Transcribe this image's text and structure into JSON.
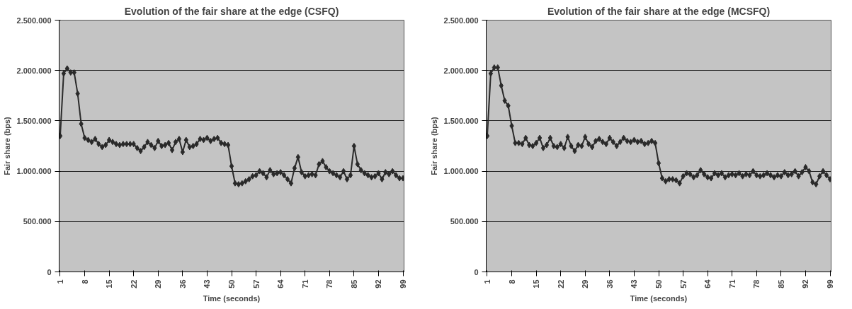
{
  "chart_data": [
    {
      "type": "line",
      "title": "Evolution of the fair share at the edge (CSFQ)",
      "xlabel": "Time (seconds)",
      "ylabel": "Fair share (bps)",
      "categories": [
        "1",
        null,
        null,
        null,
        null,
        null,
        null,
        "8",
        null,
        null,
        null,
        null,
        null,
        null,
        "15",
        null,
        null,
        null,
        null,
        null,
        null,
        "22",
        null,
        null,
        null,
        null,
        null,
        null,
        "29",
        null,
        null,
        null,
        null,
        null,
        null,
        "36",
        null,
        null,
        null,
        null,
        null,
        null,
        "43",
        null,
        null,
        null,
        null,
        null,
        null,
        "50",
        null,
        null,
        null,
        null,
        null,
        null,
        "57",
        null,
        null,
        null,
        null,
        null,
        null,
        "64",
        null,
        null,
        null,
        null,
        null,
        null,
        "71",
        null,
        null,
        null,
        null,
        null,
        null,
        "78",
        null,
        null,
        null,
        null,
        null,
        null,
        "85",
        null,
        null,
        null,
        null,
        null,
        null,
        "92",
        null,
        null,
        null,
        null,
        null,
        null,
        "99"
      ],
      "series": [
        {
          "color": "#2a2a2a",
          "values": [
            1350000,
            1970000,
            2020000,
            1980000,
            1980000,
            1770000,
            1470000,
            1330000,
            1310000,
            1290000,
            1320000,
            1270000,
            1240000,
            1260000,
            1310000,
            1290000,
            1270000,
            1260000,
            1270000,
            1270000,
            1270000,
            1270000,
            1230000,
            1200000,
            1240000,
            1290000,
            1260000,
            1230000,
            1300000,
            1250000,
            1260000,
            1280000,
            1210000,
            1290000,
            1320000,
            1190000,
            1310000,
            1240000,
            1250000,
            1270000,
            1320000,
            1310000,
            1330000,
            1300000,
            1320000,
            1330000,
            1280000,
            1270000,
            1260000,
            1050000,
            880000,
            870000,
            880000,
            900000,
            920000,
            950000,
            960000,
            1000000,
            980000,
            940000,
            1010000,
            970000,
            980000,
            990000,
            960000,
            920000,
            880000,
            1030000,
            1140000,
            990000,
            950000,
            960000,
            970000,
            960000,
            1070000,
            1100000,
            1040000,
            1000000,
            980000,
            960000,
            940000,
            1000000,
            920000,
            960000,
            1250000,
            1070000,
            1010000,
            980000,
            960000,
            940000,
            950000,
            980000,
            920000,
            990000,
            970000,
            1000000,
            960000,
            930000,
            930000
          ]
        }
      ],
      "ylim": [
        0,
        2500000
      ],
      "yticks": [
        0,
        {
          "value": 500000,
          "label": "500.000"
        },
        {
          "value": 1000000,
          "label": "1.000.000"
        },
        {
          "value": 1500000,
          "label": "1.500.000"
        },
        {
          "value": 2000000,
          "label": "2.000.000"
        },
        {
          "value": 2500000,
          "label": "2.500.000"
        }
      ],
      "grid": "y",
      "marker": "diamond",
      "line_style": "solid"
    },
    {
      "type": "line",
      "title": "Evolution of the fair share at the edge (MCSFQ)",
      "xlabel": "Time (seconds)",
      "ylabel": "Fair share (bps)",
      "categories": [
        "1",
        null,
        null,
        null,
        null,
        null,
        null,
        "8",
        null,
        null,
        null,
        null,
        null,
        null,
        "15",
        null,
        null,
        null,
        null,
        null,
        null,
        "22",
        null,
        null,
        null,
        null,
        null,
        null,
        "29",
        null,
        null,
        null,
        null,
        null,
        null,
        "36",
        null,
        null,
        null,
        null,
        null,
        null,
        "43",
        null,
        null,
        null,
        null,
        null,
        null,
        "50",
        null,
        null,
        null,
        null,
        null,
        null,
        "57",
        null,
        null,
        null,
        null,
        null,
        null,
        "64",
        null,
        null,
        null,
        null,
        null,
        null,
        "71",
        null,
        null,
        null,
        null,
        null,
        null,
        "78",
        null,
        null,
        null,
        null,
        null,
        null,
        "85",
        null,
        null,
        null,
        null,
        null,
        null,
        "92",
        null,
        null,
        null,
        null,
        null,
        null,
        "99"
      ],
      "series": [
        {
          "color": "#2a2a2a",
          "values": [
            1350000,
            1970000,
            2030000,
            2030000,
            1850000,
            1700000,
            1650000,
            1450000,
            1280000,
            1280000,
            1270000,
            1330000,
            1260000,
            1250000,
            1280000,
            1330000,
            1230000,
            1260000,
            1330000,
            1250000,
            1240000,
            1270000,
            1230000,
            1340000,
            1250000,
            1200000,
            1260000,
            1250000,
            1340000,
            1270000,
            1240000,
            1300000,
            1320000,
            1290000,
            1270000,
            1330000,
            1290000,
            1250000,
            1290000,
            1330000,
            1300000,
            1290000,
            1310000,
            1290000,
            1300000,
            1270000,
            1280000,
            1300000,
            1280000,
            1080000,
            930000,
            900000,
            920000,
            920000,
            910000,
            880000,
            950000,
            980000,
            970000,
            940000,
            960000,
            1010000,
            970000,
            940000,
            930000,
            980000,
            960000,
            980000,
            940000,
            960000,
            970000,
            960000,
            980000,
            950000,
            970000,
            960000,
            1000000,
            960000,
            950000,
            960000,
            980000,
            960000,
            940000,
            960000,
            950000,
            990000,
            960000,
            970000,
            1000000,
            950000,
            990000,
            1040000,
            1000000,
            890000,
            870000,
            950000,
            1000000,
            960000,
            920000
          ]
        }
      ],
      "ylim": [
        0,
        2500000
      ],
      "yticks": [
        0,
        {
          "value": 500000,
          "label": "500.000"
        },
        {
          "value": 1000000,
          "label": "1.000.000"
        },
        {
          "value": 1500000,
          "label": "1.500.000"
        },
        {
          "value": 2000000,
          "label": "2.000.000"
        },
        {
          "value": 2500000,
          "label": "2.500.000"
        }
      ],
      "grid": "y",
      "marker": "diamond",
      "line_style": "solid"
    }
  ]
}
